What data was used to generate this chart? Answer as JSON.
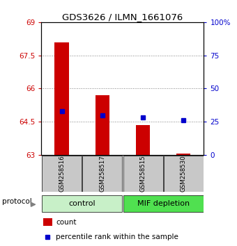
{
  "title": "GDS3626 / ILMN_1661076",
  "samples": [
    "GSM258516",
    "GSM258517",
    "GSM258515",
    "GSM258530"
  ],
  "bar_base": 63,
  "bar_tops": [
    68.1,
    65.7,
    64.35,
    63.05
  ],
  "percentile_ranks": [
    33,
    30,
    28,
    26
  ],
  "ylim_left": [
    63,
    69
  ],
  "ylim_right": [
    0,
    100
  ],
  "yticks_left": [
    63,
    64.5,
    66,
    67.5,
    69
  ],
  "ytick_labels_left": [
    "63",
    "64.5",
    "66",
    "67.5",
    "69"
  ],
  "yticks_right": [
    0,
    25,
    50,
    75,
    100
  ],
  "ytick_labels_right": [
    "0",
    "25",
    "50",
    "75",
    "100%"
  ],
  "bar_color": "#cc0000",
  "percentile_color": "#0000cc",
  "control_bg": "#c8f0c8",
  "depletion_bg": "#50e050",
  "sample_area_bg": "#c8c8c8",
  "legend_count_label": "count",
  "legend_percentile_label": "percentile rank within the sample",
  "protocol_label": "protocol",
  "group_labels": [
    "control",
    "MIF depletion"
  ],
  "bar_width": 0.35
}
